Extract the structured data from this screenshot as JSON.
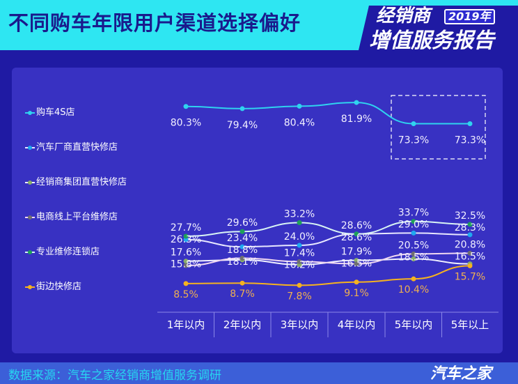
{
  "header": {
    "title": "不同购车年限用户渠道选择偏好",
    "brand_line1": "经销商",
    "brand_year": "2019年",
    "brand_line2": "增值服务报告"
  },
  "footer": {
    "source": "数据来源：汽车之家经销商增值服务调研",
    "logo": "汽车之家"
  },
  "chart_data": {
    "type": "line",
    "categories": [
      "1年以内",
      "2年以内",
      "3年以内",
      "4年以内",
      "5年以内",
      "5年以上"
    ],
    "legend_position": "left",
    "grid": false,
    "series": [
      {
        "name": "购车4S店",
        "color": "#2fd3ef",
        "marker": "#2fd3ef",
        "values": [
          80.3,
          79.4,
          80.4,
          81.9,
          73.3,
          73.3
        ],
        "labels": [
          "80.3%",
          "79.4%",
          "80.4%",
          "81.9%",
          "73.3%",
          "73.3%"
        ]
      },
      {
        "name": "汽车厂商直营快修店",
        "color": "#e8e8ff",
        "marker": "#1fa8f0",
        "values": [
          26.3,
          23.4,
          24.0,
          28.6,
          29.0,
          28.3
        ],
        "labels": [
          "26.3%",
          "23.4%",
          "24.0%",
          "28.6%",
          "29.0%",
          "28.3%"
        ]
      },
      {
        "name": "经销商集团直营快修店",
        "color": "#f0f0ff",
        "marker": "#8aae6a",
        "values": [
          17.6,
          18.1,
          16.2,
          17.9,
          18.5,
          16.5
        ],
        "labels": [
          "17.6%",
          "18.1%",
          "16.2%",
          "17.9%",
          "18.5%",
          "16.5%"
        ]
      },
      {
        "name": "电商线上平台维修店",
        "color": "#f0d8f0",
        "marker": "#707070",
        "values": [
          15.8,
          18.8,
          17.4,
          16.5,
          20.5,
          20.8
        ],
        "labels": [
          "15.8%",
          "18.8%",
          "17.4%",
          "16.5%",
          "20.5%",
          "20.8%"
        ]
      },
      {
        "name": "专业维修连锁店",
        "color": "#d8f4f4",
        "marker": "#1fa05a",
        "values": [
          27.7,
          29.6,
          33.2,
          28.6,
          33.7,
          32.5
        ],
        "labels": [
          "27.7%",
          "29.6%",
          "33.2%",
          "28.6%",
          "33.7%",
          "32.5%"
        ]
      },
      {
        "name": "街边快修店",
        "color": "#f5b21f",
        "marker": "#f5b21f",
        "values": [
          8.5,
          8.7,
          7.8,
          9.1,
          10.4,
          15.7
        ],
        "labels": [
          "8.5%",
          "8.7%",
          "7.8%",
          "9.1%",
          "10.4%",
          "15.7%"
        ]
      }
    ],
    "highlight": {
      "categories": [
        "5年以内",
        "5年以上"
      ],
      "series": "购车4S店",
      "style": "dashed-box"
    }
  }
}
